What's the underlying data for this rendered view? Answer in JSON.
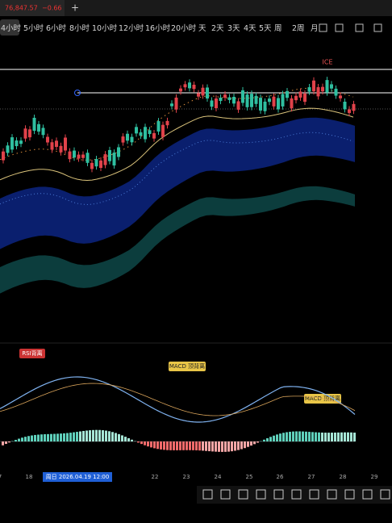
{
  "tab": {
    "price": "76,847.57",
    "change": "−0.66",
    "new_tab": "+"
  },
  "timeframes": [
    "4小时",
    "5小时",
    "6小时",
    "8小时",
    "10小时",
    "12小时",
    "16小时",
    "20小时",
    "天",
    "2天",
    "3天",
    "4天",
    "5天",
    "周",
    "2周",
    "月"
  ],
  "annotations": {
    "high_marker": "ICE",
    "badge_rsi": "RSI背离",
    "badge_macd_1": "MACD 顶背离",
    "badge_macd_2": "MACD 顶背离"
  },
  "date_axis": {
    "labels": [
      "7",
      "18",
      "22",
      "23",
      "24",
      "25",
      "26",
      "27",
      "28",
      "29"
    ],
    "crosshair": "周日 2026.04.19  12:00"
  }
}
